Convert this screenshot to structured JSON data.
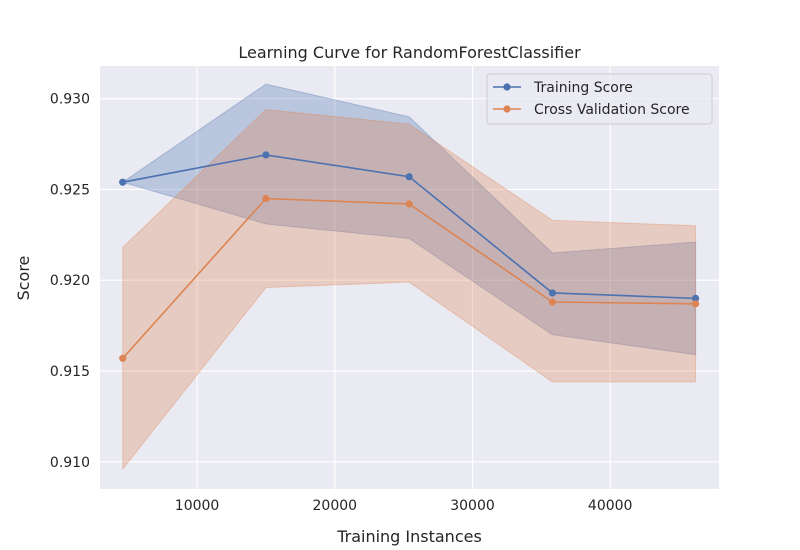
{
  "chart_data": {
    "type": "line",
    "title": "Learning Curve for RandomForestClassifier",
    "xlabel": "Training Instances",
    "ylabel": "Score",
    "xlim": [
      2950,
      47900
    ],
    "ylim": [
      0.9085,
      0.9318
    ],
    "xticks": [
      10000,
      20000,
      30000,
      40000
    ],
    "yticks": [
      0.91,
      0.915,
      0.92,
      0.925,
      0.93
    ],
    "ytick_labels": [
      "0.910",
      "0.915",
      "0.920",
      "0.925",
      "0.930"
    ],
    "grid": true,
    "legend_position": "top-right",
    "x": [
      4600,
      15000,
      25400,
      35800,
      46200
    ],
    "series": [
      {
        "name": "Training Score",
        "color": "#4c72b0",
        "values": [
          0.9254,
          0.9269,
          0.9257,
          0.9193,
          0.919
        ],
        "band_upper": [
          0.9254,
          0.9308,
          0.929,
          0.9215,
          0.9221
        ],
        "band_lower": [
          0.9254,
          0.9231,
          0.9223,
          0.917,
          0.9159
        ]
      },
      {
        "name": "Cross Validation Score",
        "color": "#dd8452",
        "values": [
          0.9157,
          0.9245,
          0.9242,
          0.9188,
          0.9187
        ],
        "band_upper": [
          0.9218,
          0.9294,
          0.9286,
          0.9233,
          0.923
        ],
        "band_lower": [
          0.9096,
          0.9196,
          0.9199,
          0.9144,
          0.9144
        ]
      }
    ]
  }
}
